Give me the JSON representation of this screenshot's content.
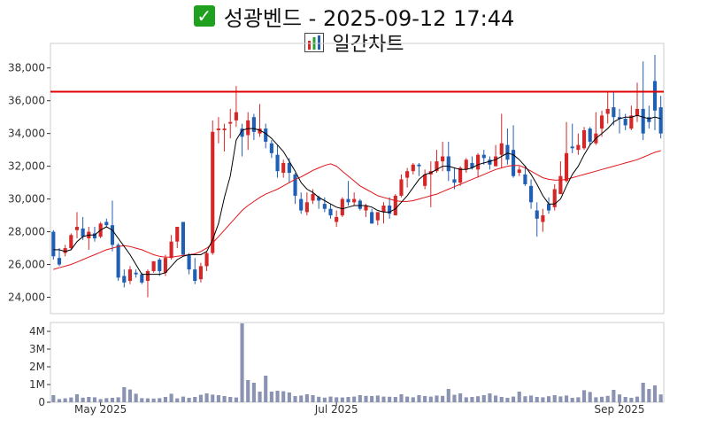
{
  "header": {
    "title": "성광벤드 - 2025-09-12 17:44",
    "subtitle": "일간차트",
    "title_icon": "check-mark-icon",
    "subtitle_icon": "bar-chart-icon"
  },
  "colors": {
    "up": "#d62728",
    "down": "#1f5fb4",
    "ma_short": "#000000",
    "ma_long": "#e0161c",
    "resistance": "#e00000",
    "volume": "#8a93b2",
    "check_bg": "#1fa01f"
  },
  "chart_data": [
    {
      "type": "candlestick",
      "title": "",
      "ylim": [
        23000,
        39500
      ],
      "yticks": [
        24000,
        26000,
        28000,
        30000,
        32000,
        34000,
        36000,
        38000
      ],
      "ytick_labels": [
        "24,000",
        "26,000",
        "28,000",
        "30,000",
        "32,000",
        "34,000",
        "36,000",
        "38,000"
      ],
      "xtick_labels": [
        "May 2025",
        "Jul 2025",
        "Sep 2025"
      ],
      "xtick_index": [
        8,
        48,
        96
      ],
      "horizontal_line": 36550,
      "grid": false,
      "candles": [
        [
          28000,
          28100,
          26300,
          26500
        ],
        [
          26400,
          27000,
          25900,
          26000
        ],
        [
          26700,
          27200,
          26500,
          27000
        ],
        [
          27000,
          27900,
          26900,
          27800
        ],
        [
          28100,
          29200,
          27600,
          28300
        ],
        [
          28200,
          28900,
          27500,
          27700
        ],
        [
          27600,
          28300,
          26900,
          28000
        ],
        [
          27900,
          28300,
          27400,
          27600
        ],
        [
          27700,
          28600,
          27600,
          28500
        ],
        [
          28600,
          28800,
          28300,
          28400
        ],
        [
          28400,
          29900,
          26800,
          27200
        ],
        [
          27200,
          27300,
          25000,
          25200
        ],
        [
          25300,
          25700,
          24600,
          24900
        ],
        [
          25000,
          25900,
          24800,
          25700
        ],
        [
          25500,
          25700,
          25200,
          25400
        ],
        [
          25400,
          25500,
          24800,
          24900
        ],
        [
          25000,
          25700,
          24000,
          25600
        ],
        [
          25600,
          26200,
          25500,
          26200
        ],
        [
          26300,
          26400,
          25300,
          25600
        ],
        [
          25500,
          26600,
          25300,
          26400
        ],
        [
          26400,
          27800,
          26300,
          27400
        ],
        [
          27400,
          28300,
          27000,
          28300
        ],
        [
          28600,
          28600,
          26500,
          26600
        ],
        [
          26600,
          26700,
          25400,
          25700
        ],
        [
          25700,
          26400,
          24800,
          25000
        ],
        [
          25100,
          26100,
          24900,
          25900
        ],
        [
          25900,
          26800,
          25600,
          26700
        ],
        [
          26700,
          34800,
          26600,
          34100
        ],
        [
          34200,
          35000,
          33400,
          34300
        ],
        [
          34200,
          34600,
          32900,
          34300
        ],
        [
          34600,
          35500,
          33700,
          34700
        ],
        [
          34800,
          36900,
          34400,
          35300
        ],
        [
          34300,
          34600,
          32600,
          33800
        ],
        [
          33900,
          35300,
          33000,
          34800
        ],
        [
          35000,
          35200,
          33600,
          34100
        ],
        [
          34000,
          35800,
          33800,
          34300
        ],
        [
          34300,
          34600,
          33100,
          33500
        ],
        [
          33400,
          33600,
          32500,
          32800
        ],
        [
          32700,
          33300,
          31300,
          31700
        ],
        [
          31600,
          32400,
          31300,
          32200
        ],
        [
          32200,
          32500,
          31000,
          31600
        ],
        [
          31500,
          31600,
          29700,
          30200
        ],
        [
          30000,
          30400,
          29100,
          29300
        ],
        [
          29200,
          30400,
          29000,
          29800
        ],
        [
          29900,
          30600,
          29700,
          30300
        ],
        [
          30100,
          30200,
          29400,
          29900
        ],
        [
          29700,
          30100,
          29200,
          29400
        ],
        [
          29400,
          29700,
          28800,
          29000
        ],
        [
          28600,
          29300,
          28300,
          28900
        ],
        [
          29000,
          30100,
          28900,
          30000
        ],
        [
          30000,
          31100,
          29600,
          29800
        ],
        [
          29800,
          30400,
          29600,
          30000
        ],
        [
          29900,
          30000,
          29300,
          29400
        ],
        [
          29300,
          29700,
          28900,
          29600
        ],
        [
          29200,
          29400,
          28500,
          28500
        ],
        [
          28700,
          29200,
          28400,
          29200
        ],
        [
          29200,
          29800,
          28500,
          29600
        ],
        [
          29600,
          30100,
          28800,
          29100
        ],
        [
          29000,
          30300,
          29000,
          30200
        ],
        [
          30200,
          31500,
          30100,
          31200
        ],
        [
          31300,
          31900,
          30700,
          31700
        ],
        [
          31700,
          32200,
          31500,
          32100
        ],
        [
          32100,
          32200,
          31400,
          32000
        ],
        [
          30800,
          31800,
          30600,
          31500
        ],
        [
          31500,
          32300,
          29500,
          31700
        ],
        [
          31700,
          33000,
          31600,
          32300
        ],
        [
          32300,
          33500,
          31700,
          32600
        ],
        [
          32600,
          33500,
          31100,
          31700
        ],
        [
          31200,
          31900,
          30600,
          31000
        ],
        [
          31000,
          32000,
          30800,
          31900
        ],
        [
          31800,
          32500,
          31600,
          32400
        ],
        [
          32200,
          32600,
          31800,
          31900
        ],
        [
          31800,
          32800,
          31300,
          32700
        ],
        [
          32700,
          33000,
          32100,
          32500
        ],
        [
          32400,
          32600,
          31800,
          32100
        ],
        [
          32000,
          33300,
          32000,
          32600
        ],
        [
          32700,
          35200,
          31900,
          33400
        ],
        [
          33300,
          34300,
          32100,
          32400
        ],
        [
          33000,
          34500,
          31300,
          31400
        ],
        [
          31600,
          32000,
          31400,
          31800
        ],
        [
          31500,
          32000,
          30800,
          30900
        ],
        [
          30800,
          31200,
          29400,
          29800
        ],
        [
          29300,
          29800,
          27700,
          28800
        ],
        [
          28600,
          29400,
          28000,
          29000
        ],
        [
          29700,
          30100,
          29100,
          29300
        ],
        [
          29500,
          30900,
          29300,
          30600
        ],
        [
          30300,
          32300,
          30300,
          31400
        ],
        [
          31100,
          34700,
          31000,
          32800
        ],
        [
          33200,
          34600,
          32800,
          33100
        ],
        [
          33000,
          34000,
          32700,
          33300
        ],
        [
          33100,
          34400,
          33000,
          34200
        ],
        [
          34300,
          34400,
          33300,
          33500
        ],
        [
          33400,
          35300,
          33300,
          34000
        ],
        [
          34300,
          35400,
          33800,
          35100
        ],
        [
          35200,
          36600,
          34600,
          35500
        ],
        [
          35600,
          36500,
          34500,
          35000
        ],
        [
          35000,
          35500,
          34000,
          34900
        ],
        [
          34900,
          35200,
          34200,
          34500
        ],
        [
          34300,
          35700,
          34200,
          35100
        ],
        [
          35100,
          37100,
          34700,
          35500
        ],
        [
          35500,
          38400,
          33600,
          34000
        ],
        [
          35000,
          35700,
          34300,
          34700
        ],
        [
          37200,
          38800,
          34200,
          35400
        ],
        [
          35600,
          36300,
          33700,
          34000
        ]
      ],
      "ma_short": [
        26900,
        26900,
        26800,
        26900,
        27400,
        27700,
        27800,
        27800,
        28100,
        28300,
        28100,
        27600,
        27100,
        26600,
        26000,
        25400,
        25400,
        25400,
        25400,
        25500,
        25900,
        26300,
        26500,
        26600,
        26600,
        26600,
        26800,
        27500,
        28500,
        30100,
        31400,
        33600,
        34200,
        34300,
        34300,
        34200,
        34000,
        33700,
        33300,
        32900,
        32300,
        31700,
        31000,
        30600,
        30400,
        30100,
        29900,
        29700,
        29500,
        29400,
        29500,
        29600,
        29600,
        29600,
        29500,
        29300,
        29200,
        29200,
        29400,
        29800,
        30200,
        30700,
        31200,
        31500,
        31600,
        31800,
        32000,
        32000,
        31900,
        31800,
        31800,
        31900,
        32100,
        32200,
        32300,
        32400,
        32600,
        32800,
        32700,
        32400,
        32000,
        31500,
        30900,
        30200,
        29700,
        29700,
        30000,
        30800,
        31500,
        32000,
        32700,
        33300,
        33700,
        34000,
        34300,
        34700,
        34900,
        35000,
        35000,
        35100,
        35000,
        34900,
        35000,
        34900
      ],
      "ma_long": [
        25700,
        25800,
        25900,
        26000,
        26150,
        26300,
        26450,
        26600,
        26750,
        26900,
        27000,
        27100,
        27150,
        27100,
        27000,
        26900,
        26750,
        26600,
        26500,
        26450,
        26450,
        26500,
        26550,
        26600,
        26650,
        26800,
        27000,
        27300,
        27700,
        28100,
        28500,
        28900,
        29300,
        29600,
        29850,
        30100,
        30300,
        30450,
        30600,
        30800,
        31000,
        31200,
        31350,
        31550,
        31750,
        31900,
        32050,
        32150,
        32000,
        31700,
        31400,
        31100,
        30800,
        30600,
        30400,
        30200,
        30100,
        30000,
        29900,
        29850,
        29850,
        29900,
        30000,
        30100,
        30200,
        30300,
        30450,
        30600,
        30750,
        30900,
        31050,
        31200,
        31350,
        31500,
        31650,
        31800,
        31900,
        32000,
        32050,
        32050,
        31900,
        31700,
        31500,
        31300,
        31200,
        31150,
        31150,
        31200,
        31300,
        31400,
        31500,
        31600,
        31700,
        31800,
        31900,
        32000,
        32100,
        32200,
        32300,
        32400,
        32550,
        32700,
        32850,
        32950
      ]
    },
    {
      "type": "bar",
      "title": "",
      "ylim": [
        0,
        4500000
      ],
      "yticks": [
        0,
        1000000,
        2000000,
        3000000,
        4000000
      ],
      "ytick_labels": [
        "0",
        "1M",
        "2M",
        "3M",
        "4M"
      ],
      "values": [
        400000,
        180000,
        220000,
        270000,
        450000,
        260000,
        300000,
        280000,
        180000,
        230000,
        250000,
        280000,
        850000,
        720000,
        480000,
        230000,
        220000,
        210000,
        230000,
        300000,
        480000,
        220000,
        320000,
        250000,
        300000,
        420000,
        500000,
        430000,
        400000,
        350000,
        300000,
        270000,
        4450000,
        1250000,
        1100000,
        600000,
        1500000,
        600000,
        650000,
        620000,
        550000,
        350000,
        380000,
        450000,
        400000,
        310000,
        260000,
        320000,
        280000,
        270000,
        300000,
        320000,
        400000,
        360000,
        350000,
        380000,
        320000,
        310000,
        300000,
        450000,
        320000,
        280000,
        400000,
        350000,
        320000,
        380000,
        360000,
        750000,
        420000,
        500000,
        280000,
        300000,
        340000,
        400000,
        500000,
        380000,
        300000,
        250000,
        320000,
        600000,
        340000,
        380000,
        300000,
        280000,
        340000,
        400000,
        330000,
        380000,
        250000,
        280000,
        680000,
        580000,
        280000,
        310000,
        360000,
        700000,
        440000,
        300000,
        250000,
        320000,
        1100000,
        750000,
        950000,
        440000
      ]
    }
  ]
}
